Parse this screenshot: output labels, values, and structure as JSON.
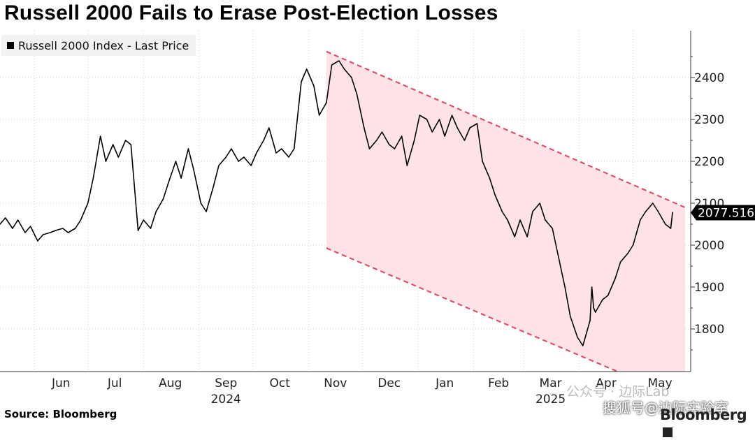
{
  "title": "Russell 2000 Fails to Erase Post-Election Losses",
  "legend": {
    "label": "Russell 2000 Index - Last Price"
  },
  "source": "Source: Bloomberg",
  "brand": "Bloomberg",
  "watermark": {
    "line1": "公众号 · 边际Lab",
    "line2": "搜狐号@边际实验室"
  },
  "last_price_label": "2077.516",
  "colors": {
    "line": "#000000",
    "channel_fill": "#fde3e8",
    "channel_border": "#d9536a",
    "grid": "#d0d0d0",
    "last_label_bg": "#000000"
  },
  "chart_data": {
    "type": "line",
    "title": "Russell 2000 Fails to Erase Post-Election Losses",
    "xlabel": "",
    "ylabel": "",
    "ylim": [
      1700,
      2480
    ],
    "y_ticks": [
      1800,
      1900,
      2000,
      2100,
      2200,
      2300,
      2400
    ],
    "x_tick_labels": [
      "Jun",
      "Jul",
      "Aug",
      "Sep",
      "Oct",
      "Nov",
      "Dec",
      "Jan",
      "Feb",
      "Mar",
      "Apr",
      "May"
    ],
    "year_labels": [
      {
        "text": "2024",
        "under": "Sep"
      },
      {
        "text": "2025",
        "under": "Mar"
      }
    ],
    "grid": true,
    "legend_position": "top-left",
    "series": [
      {
        "name": "Russell 2000 Index - Last Price",
        "last_value": 2077.516,
        "x": [
          "2024-05-13",
          "2024-05-16",
          "2024-05-20",
          "2024-05-23",
          "2024-05-27",
          "2024-05-30",
          "2024-06-03",
          "2024-06-06",
          "2024-06-10",
          "2024-06-13",
          "2024-06-17",
          "2024-06-20",
          "2024-06-24",
          "2024-06-27",
          "2024-07-01",
          "2024-07-04",
          "2024-07-08",
          "2024-07-11",
          "2024-07-15",
          "2024-07-18",
          "2024-07-22",
          "2024-07-25",
          "2024-07-29",
          "2024-08-01",
          "2024-08-05",
          "2024-08-08",
          "2024-08-12",
          "2024-08-15",
          "2024-08-19",
          "2024-08-22",
          "2024-08-26",
          "2024-08-29",
          "2024-09-02",
          "2024-09-05",
          "2024-09-09",
          "2024-09-12",
          "2024-09-16",
          "2024-09-19",
          "2024-09-23",
          "2024-09-26",
          "2024-09-30",
          "2024-10-03",
          "2024-10-07",
          "2024-10-10",
          "2024-10-14",
          "2024-10-17",
          "2024-10-21",
          "2024-10-24",
          "2024-10-28",
          "2024-10-31",
          "2024-11-04",
          "2024-11-07",
          "2024-11-11",
          "2024-11-14",
          "2024-11-18",
          "2024-11-21",
          "2024-11-25",
          "2024-11-28",
          "2024-12-02",
          "2024-12-05",
          "2024-12-09",
          "2024-12-12",
          "2024-12-16",
          "2024-12-19",
          "2024-12-23",
          "2024-12-26",
          "2024-12-30",
          "2025-01-02",
          "2025-01-06",
          "2025-01-09",
          "2025-01-13",
          "2025-01-16",
          "2025-01-20",
          "2025-01-23",
          "2025-01-27",
          "2025-01-30",
          "2025-02-03",
          "2025-02-06",
          "2025-02-10",
          "2025-02-13",
          "2025-02-17",
          "2025-02-20",
          "2025-02-24",
          "2025-02-27",
          "2025-03-03",
          "2025-03-06",
          "2025-03-10",
          "2025-03-13",
          "2025-03-17",
          "2025-03-20",
          "2025-03-24",
          "2025-03-27",
          "2025-03-31",
          "2025-04-03",
          "2025-04-07",
          "2025-04-08",
          "2025-04-09",
          "2025-04-10",
          "2025-04-14",
          "2025-04-17",
          "2025-04-21",
          "2025-04-24",
          "2025-04-28",
          "2025-05-01",
          "2025-05-05",
          "2025-05-08",
          "2025-05-12",
          "2025-05-15",
          "2025-05-19",
          "2025-05-22",
          "2025-05-23"
        ],
        "values": [
          2050,
          2065,
          2040,
          2060,
          2030,
          2045,
          2010,
          2025,
          2030,
          2035,
          2040,
          2030,
          2040,
          2060,
          2100,
          2160,
          2260,
          2200,
          2240,
          2210,
          2250,
          2240,
          2035,
          2060,
          2040,
          2080,
          2110,
          2150,
          2200,
          2160,
          2230,
          2180,
          2100,
          2080,
          2140,
          2190,
          2210,
          2230,
          2200,
          2210,
          2190,
          2220,
          2250,
          2280,
          2220,
          2230,
          2210,
          2230,
          2390,
          2420,
          2380,
          2310,
          2340,
          2430,
          2440,
          2420,
          2400,
          2360,
          2280,
          2230,
          2250,
          2270,
          2240,
          2230,
          2260,
          2190,
          2250,
          2310,
          2300,
          2270,
          2300,
          2260,
          2310,
          2280,
          2250,
          2280,
          2290,
          2200,
          2160,
          2120,
          2080,
          2060,
          2020,
          2060,
          2020,
          2080,
          2100,
          2060,
          2040,
          1980,
          1900,
          1830,
          1780,
          1760,
          1820,
          1900,
          1850,
          1840,
          1870,
          1880,
          1920,
          1960,
          1980,
          2000,
          2060,
          2080,
          2100,
          2080,
          2050,
          2040,
          2078
        ]
      }
    ],
    "annotations": [
      {
        "type": "downward_channel",
        "upper_line": {
          "from": {
            "x": "2024-11-11",
            "y": 2462
          },
          "to": {
            "x": "2025-05-30",
            "y": 2090
          }
        },
        "lower_line": {
          "from": {
            "x": "2024-11-11",
            "y": 1993
          },
          "to": {
            "x": "2025-05-30",
            "y": 1630
          }
        }
      }
    ]
  }
}
